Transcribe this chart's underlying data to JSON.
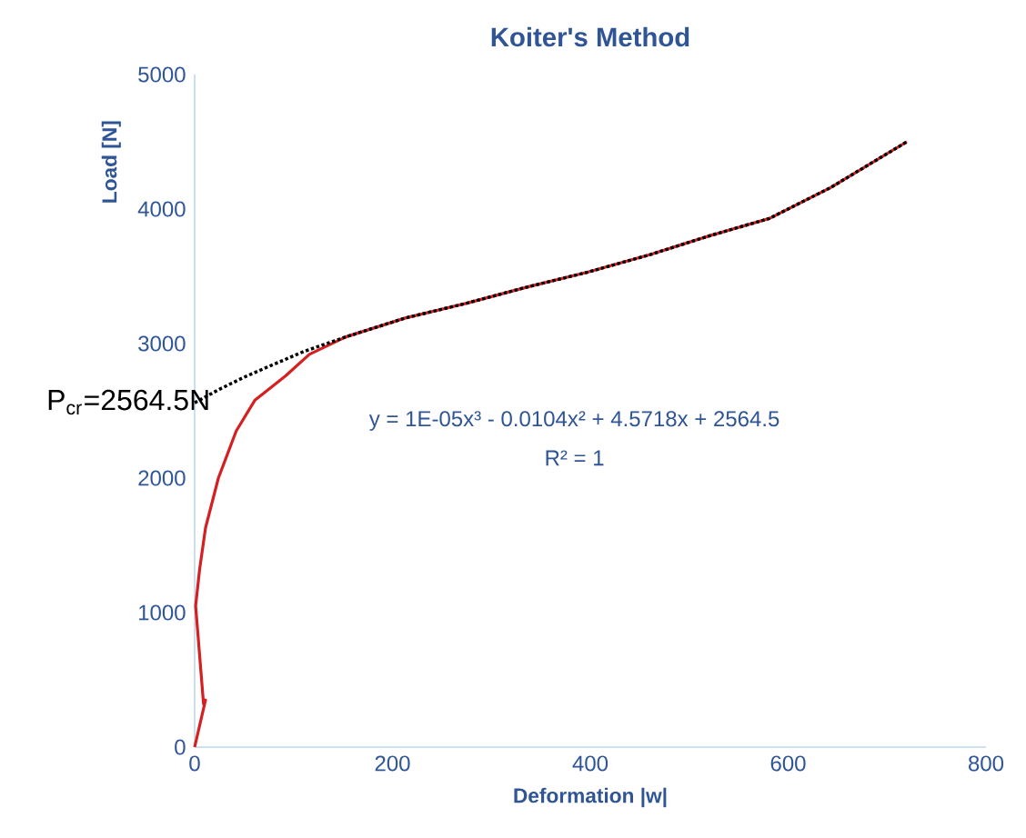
{
  "chart_data": {
    "type": "line",
    "title": "Koiter's Method",
    "xlabel": "Deformation |w|",
    "ylabel": "Load [N]",
    "xlim": [
      0,
      800
    ],
    "ylim": [
      0,
      5000
    ],
    "xticks": [
      0,
      200,
      400,
      600,
      800
    ],
    "yticks": [
      0,
      1000,
      2000,
      3000,
      4000,
      5000
    ],
    "grid": false,
    "marker": "none",
    "series": [
      {
        "color": "#d42020",
        "line_style": "solid",
        "x": [
          0,
          11,
          9,
          1,
          5,
          11,
          24,
          42,
          61,
          92,
          116,
          153,
          213,
          275,
          336,
          397,
          460,
          520,
          581,
          643,
          720
        ],
        "values": [
          0,
          350,
          320,
          1050,
          1320,
          1630,
          2000,
          2350,
          2580,
          2760,
          2920,
          3050,
          3190,
          3300,
          3420,
          3530,
          3660,
          3800,
          3930,
          4160,
          4500
        ]
      },
      {
        "color": "#000000",
        "line_style": "dotted",
        "x": [
          0,
          25,
          50,
          75,
          110,
          153,
          213,
          275,
          336,
          397,
          460,
          520,
          581,
          643,
          720
        ],
        "values": [
          2560,
          2660,
          2750,
          2830,
          2940,
          3050,
          3190,
          3300,
          3420,
          3530,
          3660,
          3800,
          3930,
          4160,
          4500
        ]
      }
    ],
    "annotations": [
      {
        "text": "P$_{cr}$=2564.5N",
        "x": 0,
        "y": 2564.5
      },
      "y = 1E-05x³ - 0.0104x² + 4.5718x + 2564.5",
      "R² = 1"
    ]
  }
}
